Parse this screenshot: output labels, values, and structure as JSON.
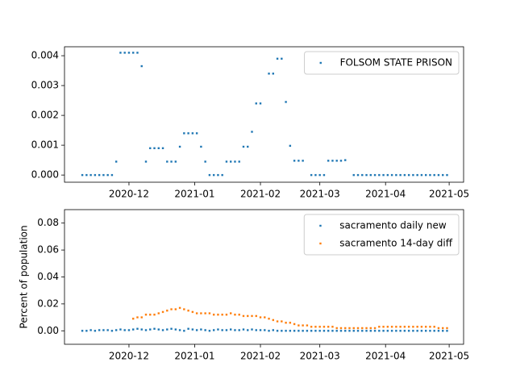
{
  "chart_data": [
    {
      "type": "scatter",
      "x": [
        18575,
        18577,
        18579,
        18581,
        18583,
        18585,
        18587,
        18589,
        18591,
        18593,
        18595,
        18597,
        18599,
        18601,
        18603,
        18605,
        18607,
        18609,
        18611,
        18613,
        18615,
        18617,
        18619,
        18621,
        18623,
        18625,
        18627,
        18629,
        18631,
        18633,
        18635,
        18637,
        18639,
        18641,
        18643,
        18645,
        18647,
        18649,
        18651,
        18653,
        18655,
        18657,
        18659,
        18661,
        18663,
        18665,
        18667,
        18669,
        18671,
        18673,
        18675,
        18677,
        18679,
        18681,
        18683,
        18685,
        18687,
        18689,
        18691,
        18693,
        18695,
        18697,
        18699,
        18701,
        18703,
        18705,
        18707,
        18709,
        18711,
        18713,
        18715,
        18717,
        18719,
        18721,
        18723,
        18725,
        18727,
        18729,
        18731,
        18733,
        18735,
        18737,
        18739,
        18741,
        18743,
        18745,
        18747
      ],
      "series": [
        {
          "name": "FOLSOM STATE PRISON",
          "color": "#1f77b4",
          "values": [
            0,
            0,
            0,
            0,
            0,
            0,
            0,
            0,
            0.00045,
            0.0041,
            0.0041,
            0.0041,
            0.0041,
            0.0041,
            0.00365,
            0.00045,
            0.0009,
            0.0009,
            0.0009,
            0.0009,
            0.00045,
            0.00045,
            0.00045,
            0.00095,
            0.0014,
            0.0014,
            0.0014,
            0.0014,
            0.00095,
            0.00045,
            0,
            0,
            0,
            0,
            0.00045,
            0.00045,
            0.00045,
            0.00045,
            0.00095,
            0.00095,
            0.00145,
            0.0024,
            0.0024,
            null,
            0.0034,
            0.0034,
            0.0039,
            0.0039,
            0.00245,
            0.00098,
            0.00048,
            0.00048,
            0.00048,
            null,
            0,
            0,
            0,
            0,
            0.00048,
            0.00048,
            0.00048,
            0.00048,
            0.0005,
            null,
            0,
            0,
            0,
            0,
            0,
            0,
            0,
            0,
            0,
            0,
            0,
            0,
            0,
            0,
            0,
            0,
            0,
            0,
            0,
            0,
            0,
            0,
            0
          ]
        }
      ],
      "xlim": [
        18566.6,
        18754.8
      ],
      "xticks": [
        {
          "value": 18597,
          "label": "2020-12"
        },
        {
          "value": 18628,
          "label": "2021-01"
        },
        {
          "value": 18659,
          "label": "2021-02"
        },
        {
          "value": 18687,
          "label": "2021-03"
        },
        {
          "value": 18718,
          "label": "2021-04"
        },
        {
          "value": 18748,
          "label": "2021-05"
        }
      ],
      "ylim": [
        -0.00024,
        0.0043
      ],
      "yticks": [
        {
          "value": 0,
          "label": "0.000"
        },
        {
          "value": 0.001,
          "label": "0.001"
        },
        {
          "value": 0.002,
          "label": "0.002"
        },
        {
          "value": 0.003,
          "label": "0.003"
        },
        {
          "value": 0.004,
          "label": "0.004"
        }
      ],
      "legend": "upper right"
    },
    {
      "type": "scatter",
      "ylabel": "Percent of population",
      "x": [
        18575,
        18577,
        18579,
        18581,
        18583,
        18585,
        18587,
        18589,
        18591,
        18593,
        18595,
        18597,
        18599,
        18601,
        18603,
        18605,
        18607,
        18609,
        18611,
        18613,
        18615,
        18617,
        18619,
        18621,
        18623,
        18625,
        18627,
        18629,
        18631,
        18633,
        18635,
        18637,
        18639,
        18641,
        18643,
        18645,
        18647,
        18649,
        18651,
        18653,
        18655,
        18657,
        18659,
        18661,
        18663,
        18665,
        18667,
        18669,
        18671,
        18673,
        18675,
        18677,
        18679,
        18681,
        18683,
        18685,
        18687,
        18689,
        18691,
        18693,
        18695,
        18697,
        18699,
        18701,
        18703,
        18705,
        18707,
        18709,
        18711,
        18713,
        18715,
        18717,
        18719,
        18721,
        18723,
        18725,
        18727,
        18729,
        18731,
        18733,
        18735,
        18737,
        18739,
        18741,
        18743,
        18745,
        18747
      ],
      "series": [
        {
          "name": "sacramento daily new",
          "color": "#1f77b4",
          "values": [
            0,
            0,
            0.0005,
            0,
            0.0005,
            0.0005,
            0.0005,
            0,
            0.0005,
            0.001,
            0.0005,
            0.0005,
            0.001,
            0.0015,
            0.001,
            0.0005,
            0.001,
            0.0015,
            0.001,
            0.0005,
            0.001,
            0.0015,
            0.001,
            0.0005,
            0,
            0.0015,
            0.001,
            0.0005,
            0.001,
            0.0005,
            0,
            0.0005,
            0.001,
            0.0005,
            0.0005,
            0.001,
            0.0005,
            0.0005,
            0.001,
            0.0005,
            0.001,
            0.0005,
            0.0005,
            0.0005,
            0,
            0.0005,
            0,
            0,
            0,
            0,
            0,
            0,
            0,
            0,
            0,
            0,
            0,
            0,
            0,
            0,
            0,
            0,
            0,
            0,
            0,
            0,
            0,
            0,
            0,
            0,
            0,
            0,
            0,
            0,
            0,
            0,
            0,
            0,
            0,
            0,
            0,
            0,
            0,
            0,
            0,
            0,
            0
          ]
        },
        {
          "name": "sacramento 14-day diff",
          "color": "#ff7f0e",
          "values": [
            null,
            null,
            null,
            null,
            null,
            null,
            null,
            null,
            null,
            null,
            null,
            null,
            0.009,
            0.01,
            0.01,
            0.012,
            0.012,
            0.012,
            0.013,
            0.014,
            0.015,
            0.016,
            0.016,
            0.017,
            0.016,
            0.015,
            0.014,
            0.013,
            0.013,
            0.013,
            0.013,
            0.012,
            0.012,
            0.012,
            0.012,
            0.013,
            0.012,
            0.012,
            0.011,
            0.011,
            0.011,
            0.011,
            0.01,
            0.01,
            0.009,
            0.008,
            0.007,
            0.007,
            0.006,
            0.006,
            0.005,
            0.004,
            0.004,
            0.004,
            0.003,
            0.003,
            0.003,
            0.003,
            0.003,
            0.003,
            0.002,
            0.002,
            0.002,
            0.002,
            0.002,
            0.002,
            0.002,
            0.002,
            0.002,
            0.002,
            0.003,
            0.003,
            0.003,
            0.003,
            0.003,
            0.003,
            0.003,
            0.003,
            0.003,
            0.003,
            0.003,
            0.003,
            0.003,
            0.003,
            0.002,
            0.002,
            0.002
          ]
        }
      ],
      "xlim": [
        18566.6,
        18754.8
      ],
      "xticks": [
        {
          "value": 18597,
          "label": "2020-12"
        },
        {
          "value": 18628,
          "label": "2021-01"
        },
        {
          "value": 18659,
          "label": "2021-02"
        },
        {
          "value": 18687,
          "label": "2021-03"
        },
        {
          "value": 18718,
          "label": "2021-04"
        },
        {
          "value": 18748,
          "label": "2021-05"
        }
      ],
      "ylim": [
        -0.01,
        0.09
      ],
      "yticks": [
        {
          "value": 0,
          "label": "0.00"
        },
        {
          "value": 0.02,
          "label": "0.02"
        },
        {
          "value": 0.04,
          "label": "0.04"
        },
        {
          "value": 0.06,
          "label": "0.06"
        },
        {
          "value": 0.08,
          "label": "0.08"
        }
      ],
      "legend": "upper right"
    }
  ]
}
